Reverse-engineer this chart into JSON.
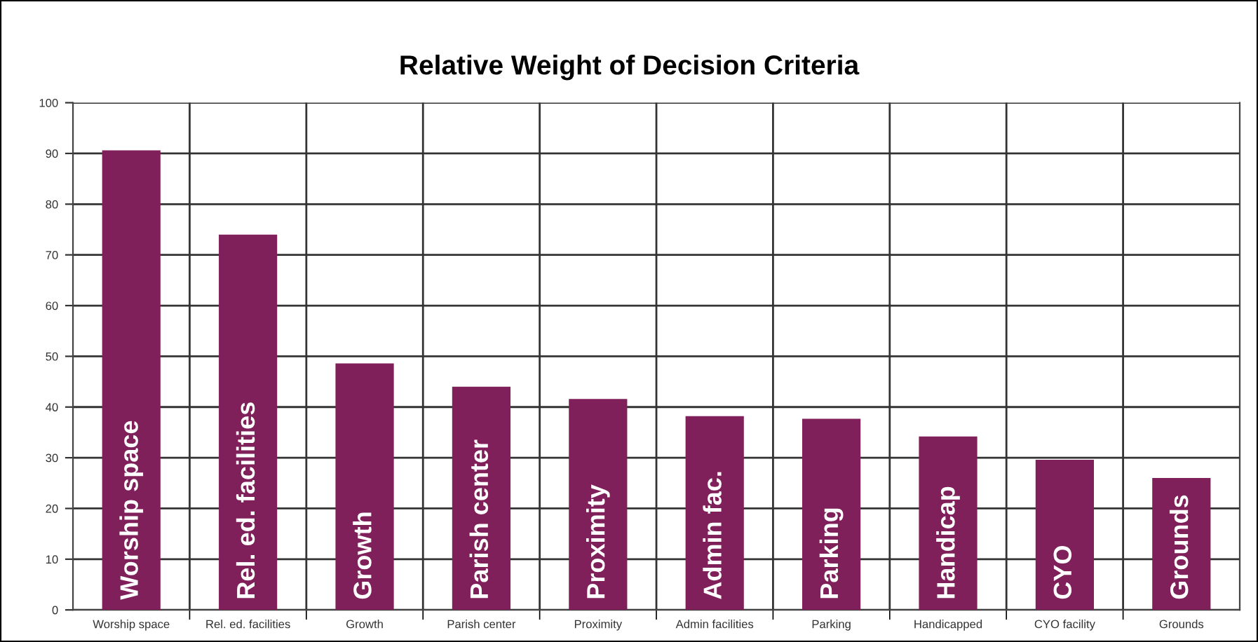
{
  "chart_data": {
    "type": "bar",
    "title": "Relative Weight of Decision Criteria",
    "categories": [
      "Worship space",
      "Rel. ed. facilities",
      "Growth",
      "Parish center",
      "Proximity",
      "Admin facilities",
      "Parking",
      "Handicapped",
      "CYO facility",
      "Grounds"
    ],
    "values": [
      90.6,
      74.0,
      48.6,
      44.0,
      41.6,
      38.2,
      37.7,
      34.2,
      29.6,
      26.0
    ],
    "color": "#80205a",
    "ylim": [
      0,
      100
    ],
    "yticks": [
      0,
      10,
      20,
      30,
      40,
      50,
      60,
      70,
      80,
      90,
      100
    ],
    "grid": true,
    "annotations": [
      {
        "text": "Worship space",
        "x": "Worship space",
        "y": 0
      },
      {
        "text": "Rel. ed. facilities",
        "x": "Rel. ed. facilities",
        "y": 0
      },
      {
        "text": "Growth",
        "x": "Growth",
        "y": 0
      },
      {
        "text": "Parish center",
        "x": "Parish center",
        "y": 0
      },
      {
        "text": "Proximity",
        "x": "Proximity",
        "y": 0
      },
      {
        "text": "Admin fac.",
        "x": "Admin facilities",
        "y": 0
      },
      {
        "text": "Parking",
        "x": "Parking",
        "y": 0
      },
      {
        "text": "Handicap",
        "x": "Handicapped",
        "y": 0
      },
      {
        "text": "CYO",
        "x": "CYO facility",
        "y": 0
      },
      {
        "text": "Grounds",
        "x": "Grounds",
        "y": 0
      }
    ]
  }
}
